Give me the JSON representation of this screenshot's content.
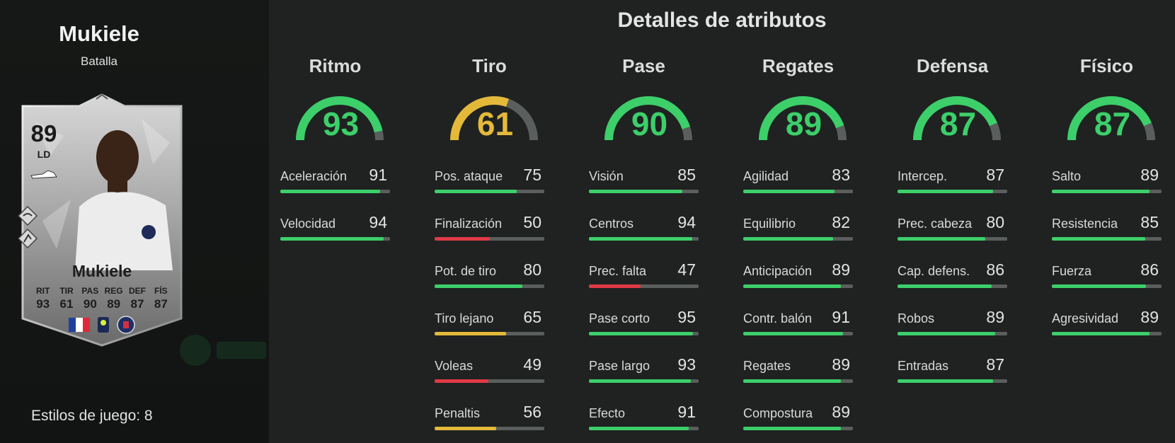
{
  "player": {
    "name": "Mukiele",
    "chemistry_style": "Batalla",
    "rating": "89",
    "position": "LD",
    "card_name": "Mukiele",
    "card_stats": [
      {
        "label": "RIT",
        "value": "93"
      },
      {
        "label": "TIR",
        "value": "61"
      },
      {
        "label": "PAS",
        "value": "90"
      },
      {
        "label": "REG",
        "value": "89"
      },
      {
        "label": "DEF",
        "value": "87"
      },
      {
        "label": "FÍS",
        "value": "87"
      }
    ],
    "playstyles_label": "Estilos de juego: 8"
  },
  "colors": {
    "green": "#3ccf6a",
    "yellow": "#e4b93a",
    "red": "#e03a46",
    "track": "#5a5e5c"
  },
  "title": "Detalles de atributos",
  "categories": [
    {
      "name": "Ritmo",
      "value": 93,
      "value_text": "93",
      "attributes": [
        {
          "name": "Aceleración",
          "value": 91,
          "value_text": "91"
        },
        {
          "name": "Velocidad",
          "value": 94,
          "value_text": "94"
        }
      ]
    },
    {
      "name": "Tiro",
      "value": 61,
      "value_text": "61",
      "attributes": [
        {
          "name": "Pos. ataque",
          "value": 75,
          "value_text": "75"
        },
        {
          "name": "Finalización",
          "value": 50,
          "value_text": "50"
        },
        {
          "name": "Pot. de tiro",
          "value": 80,
          "value_text": "80"
        },
        {
          "name": "Tiro lejano",
          "value": 65,
          "value_text": "65"
        },
        {
          "name": "Voleas",
          "value": 49,
          "value_text": "49"
        },
        {
          "name": "Penaltis",
          "value": 56,
          "value_text": "56"
        }
      ]
    },
    {
      "name": "Pase",
      "value": 90,
      "value_text": "90",
      "attributes": [
        {
          "name": "Visión",
          "value": 85,
          "value_text": "85"
        },
        {
          "name": "Centros",
          "value": 94,
          "value_text": "94"
        },
        {
          "name": "Prec. falta",
          "value": 47,
          "value_text": "47"
        },
        {
          "name": "Pase corto",
          "value": 95,
          "value_text": "95"
        },
        {
          "name": "Pase largo",
          "value": 93,
          "value_text": "93"
        },
        {
          "name": "Efecto",
          "value": 91,
          "value_text": "91"
        }
      ]
    },
    {
      "name": "Regates",
      "value": 89,
      "value_text": "89",
      "attributes": [
        {
          "name": "Agilidad",
          "value": 83,
          "value_text": "83"
        },
        {
          "name": "Equilibrio",
          "value": 82,
          "value_text": "82"
        },
        {
          "name": "Anticipación",
          "value": 89,
          "value_text": "89"
        },
        {
          "name": "Contr. balón",
          "value": 91,
          "value_text": "91"
        },
        {
          "name": "Regates",
          "value": 89,
          "value_text": "89"
        },
        {
          "name": "Compostura",
          "value": 89,
          "value_text": "89"
        }
      ]
    },
    {
      "name": "Defensa",
      "value": 87,
      "value_text": "87",
      "attributes": [
        {
          "name": "Intercep.",
          "value": 87,
          "value_text": "87"
        },
        {
          "name": "Prec. cabeza",
          "value": 80,
          "value_text": "80"
        },
        {
          "name": "Cap. defens.",
          "value": 86,
          "value_text": "86"
        },
        {
          "name": "Robos",
          "value": 89,
          "value_text": "89"
        },
        {
          "name": "Entradas",
          "value": 87,
          "value_text": "87"
        }
      ]
    },
    {
      "name": "Físico",
      "value": 87,
      "value_text": "87",
      "attributes": [
        {
          "name": "Salto",
          "value": 89,
          "value_text": "89"
        },
        {
          "name": "Resistencia",
          "value": 85,
          "value_text": "85"
        },
        {
          "name": "Fuerza",
          "value": 86,
          "value_text": "86"
        },
        {
          "name": "Agresividad",
          "value": 89,
          "value_text": "89"
        }
      ]
    }
  ]
}
